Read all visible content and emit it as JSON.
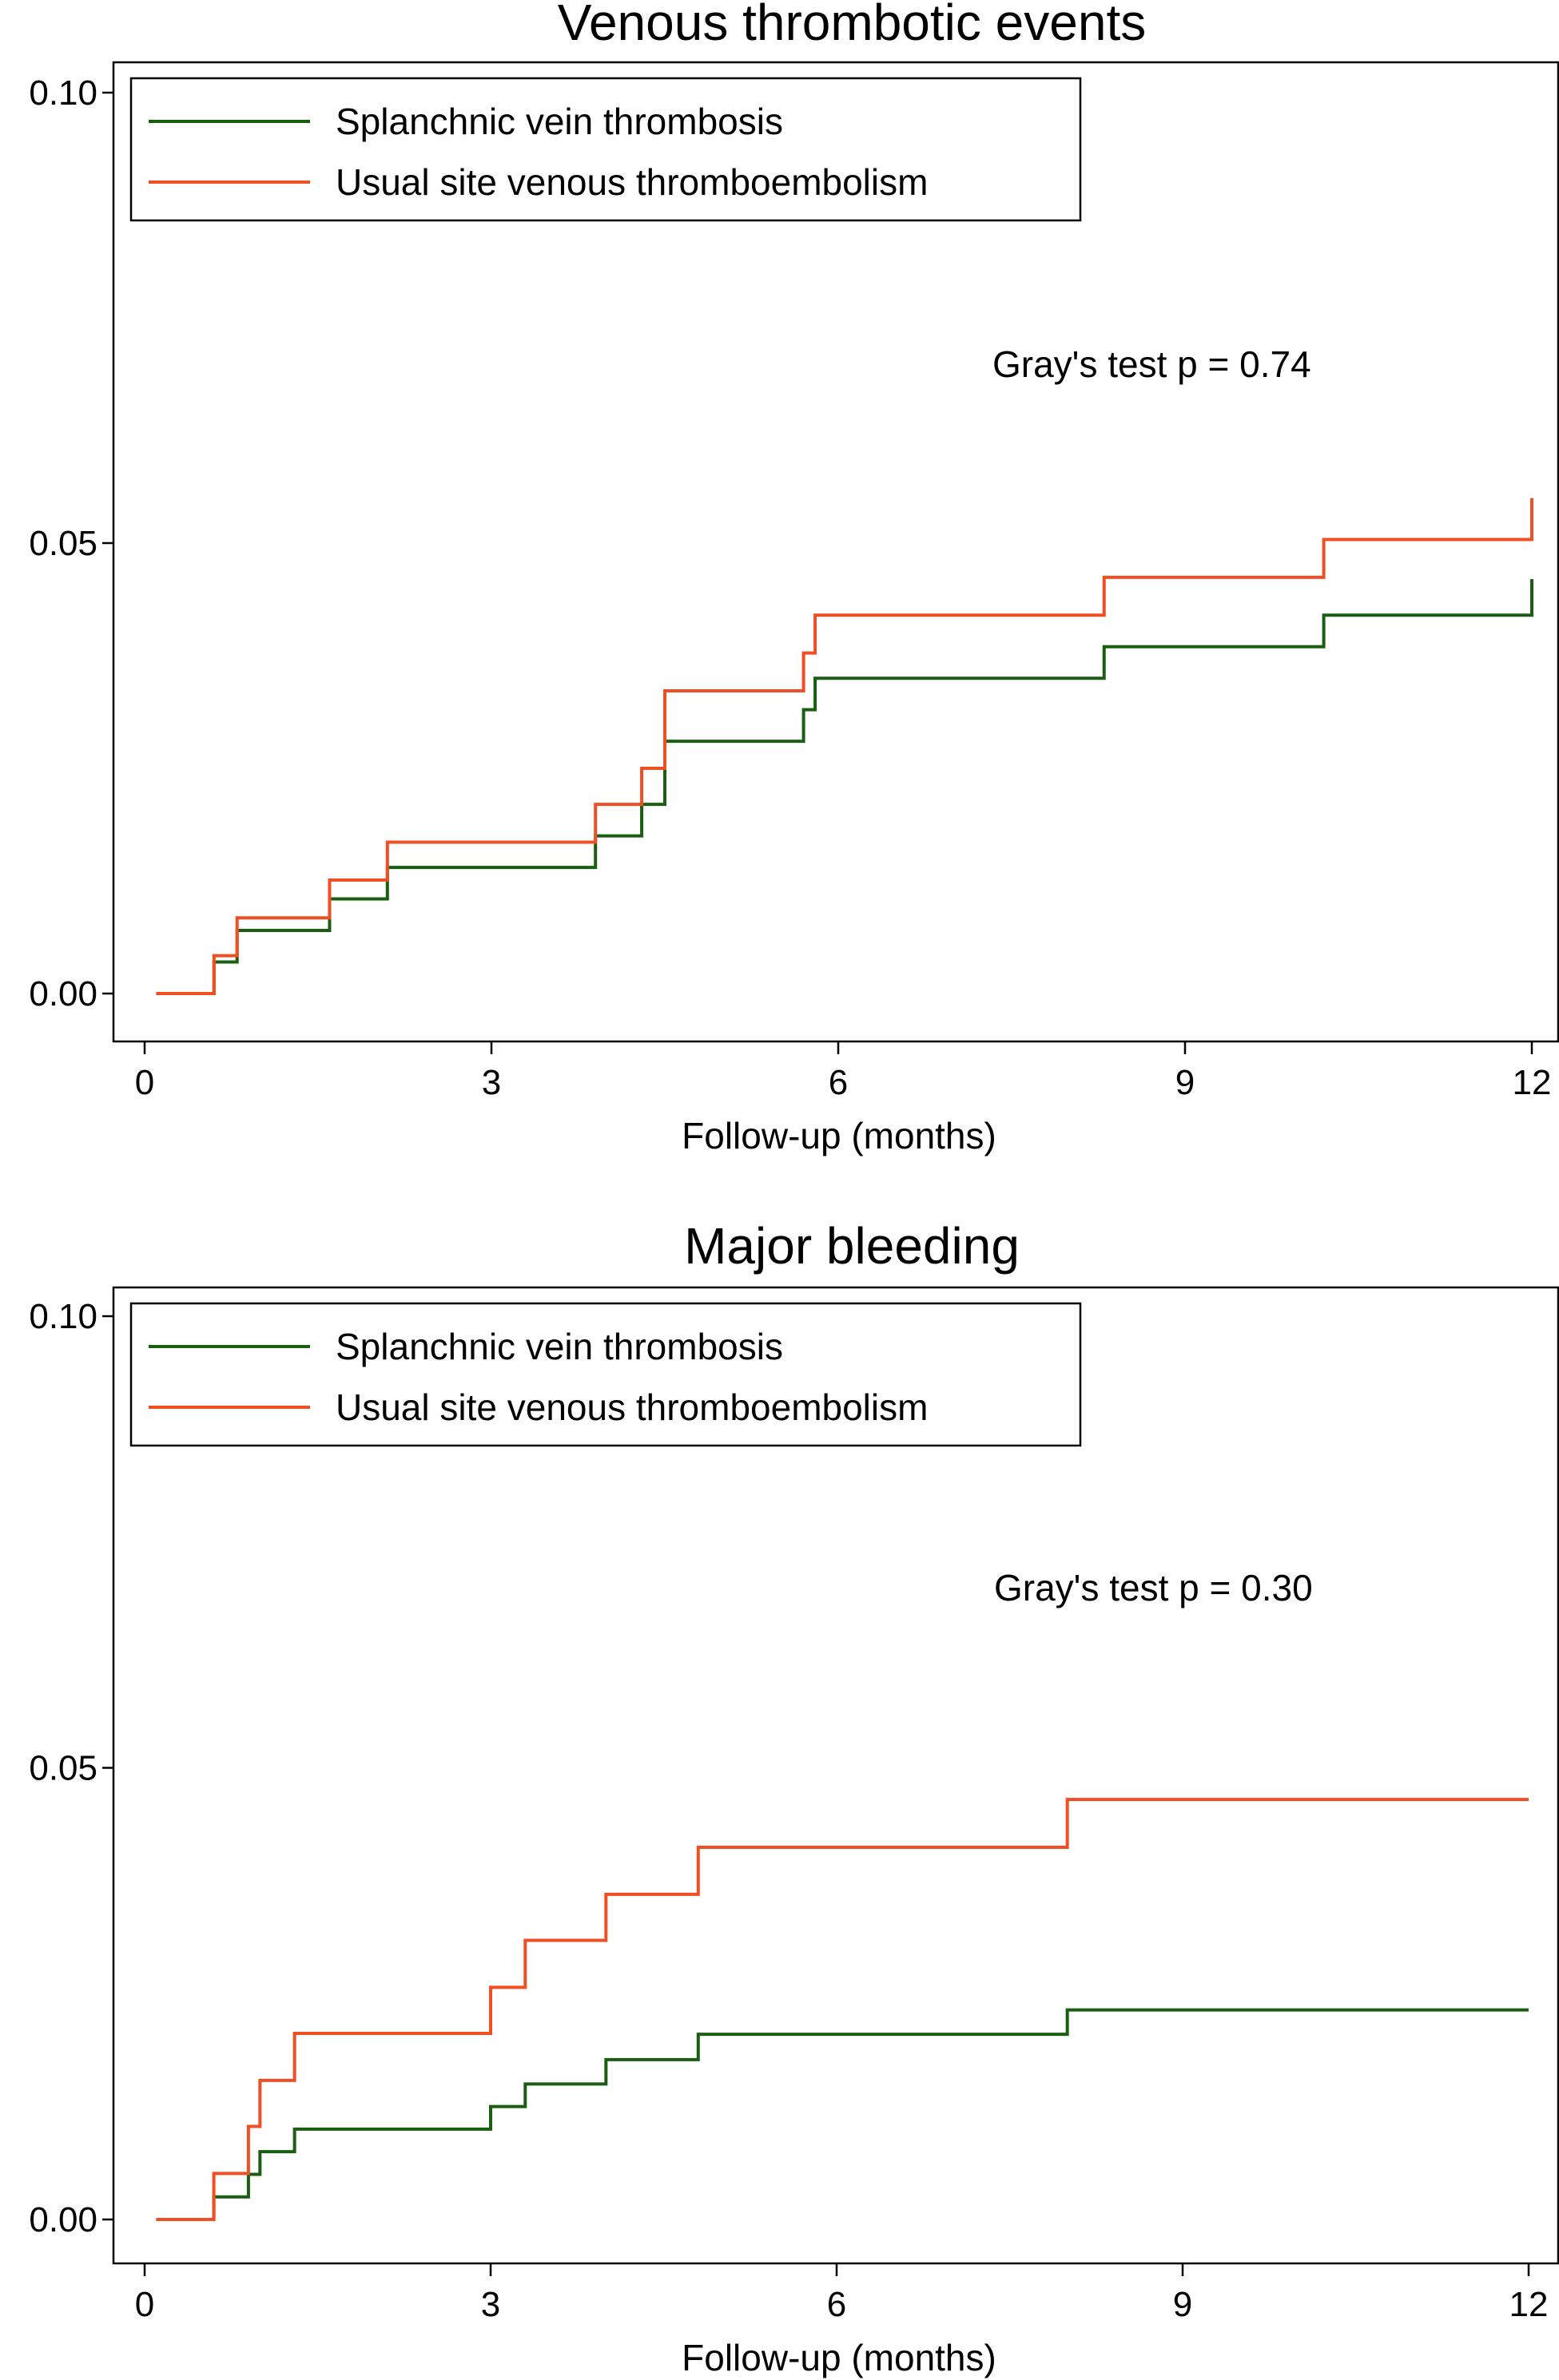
{
  "chart_data": [
    {
      "type": "line",
      "step": true,
      "title": "Venous thrombotic events",
      "xlabel": "Follow-up (months)",
      "ylabel": "",
      "xlim": [
        0,
        12
      ],
      "ylim": [
        0,
        0.1
      ],
      "xticks": [
        0,
        3,
        6,
        9,
        12
      ],
      "xtick_labels": [
        "0",
        "3",
        "6",
        "9",
        "12"
      ],
      "yticks": [
        0,
        0.05,
        0.1
      ],
      "ytick_labels": [
        "0.00",
        "0.05",
        "0.10"
      ],
      "grid": false,
      "legend_position": "top-left",
      "annotation": "Gray's test p = 0.74",
      "series": [
        {
          "name": "Splanchnic vein thrombosis",
          "color": "#1a5e12",
          "x": [
            0.1,
            0.6,
            0.8,
            1.6,
            2.1,
            3.9,
            4.3,
            4.5,
            5.7,
            5.8,
            8.3,
            10.2,
            12.0,
            12.0
          ],
          "y": [
            0.0,
            0.0035,
            0.007,
            0.0105,
            0.014,
            0.0175,
            0.021,
            0.028,
            0.0315,
            0.035,
            0.0385,
            0.042,
            0.042,
            0.046
          ]
        },
        {
          "name": "Usual site venous thromboembolism",
          "color": "#f04e23",
          "x": [
            0.1,
            0.6,
            0.8,
            1.6,
            2.1,
            3.9,
            4.3,
            4.5,
            5.7,
            5.8,
            8.3,
            10.2,
            12.0,
            12.0
          ],
          "y": [
            0.0,
            0.0042,
            0.0084,
            0.0126,
            0.0168,
            0.021,
            0.025,
            0.0336,
            0.0378,
            0.042,
            0.0462,
            0.0504,
            0.0504,
            0.055
          ]
        }
      ]
    },
    {
      "type": "line",
      "step": true,
      "title": "Major bleeding",
      "xlabel": "Follow-up (months)",
      "ylabel": "",
      "xlim": [
        0,
        12
      ],
      "ylim": [
        0,
        0.1
      ],
      "xticks": [
        0,
        3,
        6,
        9,
        12
      ],
      "xtick_labels": [
        "0",
        "3",
        "6",
        "9",
        "12"
      ],
      "yticks": [
        0,
        0.05,
        0.1
      ],
      "ytick_labels": [
        "0.00",
        "0.05",
        "0.10"
      ],
      "grid": false,
      "legend_position": "top-left",
      "annotation": "Gray's test p = 0.30",
      "series": [
        {
          "name": "Splanchnic vein thrombosis",
          "color": "#1a5e12",
          "x": [
            0.1,
            0.6,
            0.9,
            1.0,
            1.3,
            3.0,
            3.3,
            4.0,
            4.8,
            8.0,
            12.0
          ],
          "y": [
            0.0,
            0.0025,
            0.005,
            0.0075,
            0.01,
            0.0125,
            0.015,
            0.0177,
            0.0205,
            0.0232,
            0.0232
          ]
        },
        {
          "name": "Usual site venous thromboembolism",
          "color": "#f04e23",
          "x": [
            0.1,
            0.6,
            0.9,
            1.0,
            1.3,
            3.0,
            3.3,
            4.0,
            4.8,
            8.0,
            12.0
          ],
          "y": [
            0.0,
            0.0051,
            0.0103,
            0.0154,
            0.0206,
            0.0257,
            0.0309,
            0.036,
            0.0412,
            0.0465,
            0.0465
          ]
        }
      ]
    }
  ]
}
